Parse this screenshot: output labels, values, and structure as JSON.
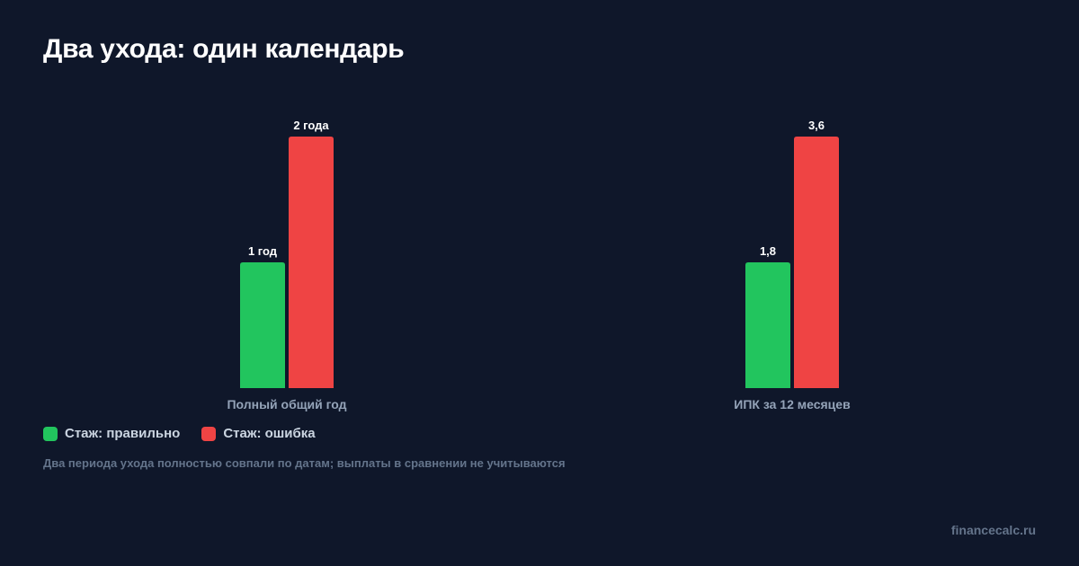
{
  "title": "Два ухода: один календарь",
  "legend": {
    "correct_label": "Стаж: правильно",
    "error_label": "Стаж: ошибка"
  },
  "note": "Два периода ухода полностью совпали по датам; выплаты в сравнении не учитываются",
  "watermark": "financecalc.ru",
  "colors": {
    "background": "#0f172a",
    "correct": "#22c55e",
    "error": "#ef4444"
  },
  "chart_data": {
    "type": "bar",
    "title": "Два ухода: один календарь",
    "categories": [
      "Полный общий год",
      "ИПК за 12 месяцев"
    ],
    "series": [
      {
        "name": "Стаж: правильно",
        "color": "#22c55e",
        "values": [
          1,
          1.8
        ],
        "labels": [
          "1 год",
          "1,8"
        ]
      },
      {
        "name": "Стаж: ошибка",
        "color": "#ef4444",
        "values": [
          2,
          3.6
        ],
        "labels": [
          "2 года",
          "3,6"
        ]
      }
    ],
    "legend": "bottom-left",
    "grid": false
  }
}
